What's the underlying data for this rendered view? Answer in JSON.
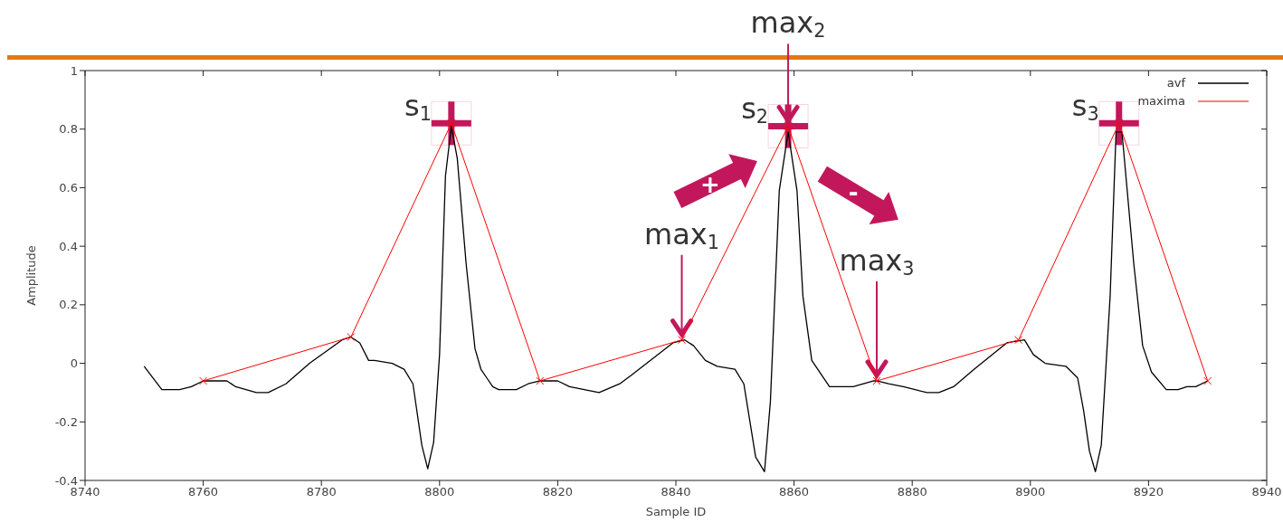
{
  "chart_data": {
    "type": "line",
    "xlabel": "Sample ID",
    "ylabel": "Amplitude",
    "xlim": [
      8740,
      8940
    ],
    "xticks": [
      8740,
      8760,
      8780,
      8800,
      8820,
      8840,
      8860,
      8880,
      8900,
      8920,
      8940
    ],
    "ylim": [
      -0.4,
      1
    ],
    "yticks": [
      -0.4,
      -0.2,
      0,
      0.2,
      0.4,
      0.6,
      0.8,
      1
    ],
    "legend": "top right",
    "line_style": "solid",
    "series": [
      {
        "name": "avf",
        "color": "#000000",
        "marker": "none",
        "x": [
          8750,
          8753,
          8756,
          8758,
          8760,
          8764,
          8765.5,
          8769,
          8771,
          8774,
          8778,
          8783.5,
          8785,
          8786.5,
          8788,
          8789,
          8792,
          8794,
          8795.5,
          8797,
          8798,
          8799,
          8800,
          8801,
          8802,
          8803,
          8804.5,
          8806,
          8807,
          8808,
          8809,
          8810,
          8813,
          8815,
          8817,
          8820,
          8822,
          8824.5,
          8827,
          8830.5,
          8832.5,
          8839.5,
          8841.5,
          8843,
          8845,
          8847,
          8850,
          8851.5,
          8853.5,
          8855,
          8856,
          8857.5,
          8859,
          8860.5,
          8861.5,
          8863,
          8866,
          8870,
          8873.5,
          8874,
          8876,
          8878.5,
          8880.5,
          8882.5,
          8884.5,
          8887,
          8890.5,
          8896,
          8899,
          8900.5,
          8902.5,
          8906,
          8908,
          8909,
          8910,
          8911,
          8912,
          8913.5,
          8914.5,
          8915.5,
          8917.5,
          8919,
          8920.5,
          8923,
          8925,
          8926.5,
          8928,
          8930
        ],
        "values": [
          -0.01,
          -0.09,
          -0.09,
          -0.08,
          -0.06,
          -0.06,
          -0.08,
          -0.1,
          -0.1,
          -0.07,
          0,
          0.08,
          0.09,
          0.07,
          0.01,
          0.01,
          0,
          -0.02,
          -0.07,
          -0.28,
          -0.36,
          -0.27,
          0.03,
          0.64,
          0.81,
          0.7,
          0.34,
          0.05,
          -0.02,
          -0.05,
          -0.08,
          -0.09,
          -0.09,
          -0.07,
          -0.06,
          -0.06,
          -0.08,
          -0.09,
          -0.1,
          -0.07,
          -0.04,
          0.07,
          0.08,
          0.06,
          0.01,
          -0.01,
          -0.02,
          -0.07,
          -0.32,
          -0.37,
          -0.13,
          0.59,
          0.79,
          0.59,
          0.23,
          0.01,
          -0.08,
          -0.08,
          -0.06,
          -0.06,
          -0.07,
          -0.08,
          -0.09,
          -0.1,
          -0.1,
          -0.08,
          -0.02,
          0.07,
          0.08,
          0.03,
          0,
          -0.01,
          -0.05,
          -0.16,
          -0.3,
          -0.37,
          -0.28,
          0.23,
          0.79,
          0.79,
          0.34,
          0.06,
          -0.03,
          -0.09,
          -0.09,
          -0.08,
          -0.08,
          -0.06
        ]
      },
      {
        "name": "maxima",
        "color": "#ff0000",
        "marker": "cross",
        "x": [
          8760,
          8785,
          8802,
          8817,
          8841,
          8859,
          8874,
          8898,
          8915,
          8930
        ],
        "values": [
          -0.06,
          0.09,
          0.82,
          -0.06,
          0.08,
          0.81,
          -0.06,
          0.08,
          0.82,
          -0.06
        ]
      }
    ],
    "annotations": [
      {
        "text": "s$_{1}$",
        "x": 8802,
        "y": 0.82
      },
      {
        "text": "s$_{2}$",
        "x": 8859,
        "y": 0.81
      },
      {
        "text": "s$_{3}$",
        "x": 8915,
        "y": 0.82
      },
      {
        "text": "max$_{1}$",
        "x": 8841,
        "y": 0.08
      },
      {
        "text": "max$_{2}$",
        "x": 8859,
        "y": 0.81
      },
      {
        "text": "max$_{3}$",
        "x": 8874,
        "y": -0.06
      },
      "+",
      "-"
    ]
  }
}
